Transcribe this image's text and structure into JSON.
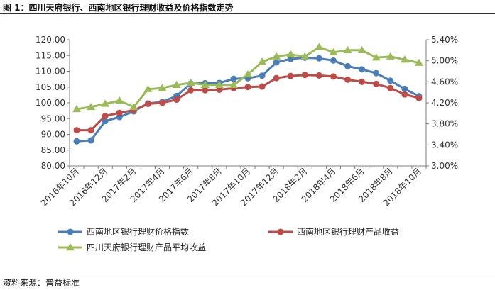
{
  "figure": {
    "title": "图 1：四川天府银行、西南地区银行理财收益及价格指数走势",
    "source": "资料来源：普益标准"
  },
  "chart_data": {
    "type": "line",
    "categories": [
      "2016年10月",
      "2016年11月",
      "2016年12月",
      "2017年1月",
      "2017年2月",
      "2017年3月",
      "2017年4月",
      "2017年5月",
      "2017年6月",
      "2017年7月",
      "2017年8月",
      "2017年9月",
      "2017年10月",
      "2017年11月",
      "2017年12月",
      "2018年1月",
      "2018年2月",
      "2018年3月",
      "2018年4月",
      "2018年5月",
      "2018年6月",
      "2018年7月",
      "2018年8月",
      "2018年9月",
      "2018年10月"
    ],
    "xtick_labels": [
      "2016年10月",
      "2016年12月",
      "2017年2月",
      "2017年4月",
      "2017年6月",
      "2017年8月",
      "2017年10月",
      "2017年12月",
      "2018年2月",
      "2018年4月",
      "2018年6月",
      "2018年8月",
      "2018年10月"
    ],
    "yticks_left": [
      "80.00",
      "85.00",
      "90.00",
      "95.00",
      "100.00",
      "105.00",
      "110.00",
      "115.00",
      "120.00"
    ],
    "yticks_right": [
      "3.00%",
      "3.40%",
      "3.80%",
      "4.20%",
      "4.60%",
      "5.00%",
      "5.40%"
    ],
    "ylim_left": [
      80,
      120
    ],
    "ylim_right": [
      3.0,
      5.4
    ],
    "grid": false,
    "legend": "bottom",
    "series": [
      {
        "name": "西南地区银行理财价格指数",
        "axis": "left",
        "color": "#4A7EBB",
        "marker": "circle",
        "values": [
          87.8,
          88.1,
          94.2,
          95.5,
          97.3,
          99.8,
          100.3,
          102.2,
          106.1,
          106.2,
          106.3,
          107.6,
          107.8,
          108.6,
          112.8,
          113.9,
          114.3,
          114.1,
          113.4,
          111.6,
          110.6,
          109.4,
          107.0,
          104.4,
          102.1
        ]
      },
      {
        "name": "西南地区银行理财产品收益",
        "axis": "right",
        "color": "#BE4B48",
        "marker": "circle",
        "values": [
          3.68,
          3.68,
          3.95,
          4.01,
          4.06,
          4.18,
          4.2,
          4.26,
          4.44,
          4.44,
          4.45,
          4.48,
          4.5,
          4.51,
          4.67,
          4.71,
          4.73,
          4.72,
          4.7,
          4.64,
          4.6,
          4.56,
          4.48,
          4.36,
          4.29
        ]
      },
      {
        "name": "四川天府银行理财产品平均收益",
        "axis": "right",
        "color": "#9BBB59",
        "marker": "triangle",
        "values": [
          4.08,
          4.12,
          4.18,
          4.24,
          4.12,
          4.46,
          4.48,
          4.54,
          4.58,
          4.54,
          4.54,
          4.54,
          4.74,
          4.98,
          5.08,
          5.12,
          5.08,
          5.26,
          5.16,
          5.2,
          5.2,
          5.06,
          5.08,
          5.02,
          4.96
        ]
      }
    ]
  }
}
